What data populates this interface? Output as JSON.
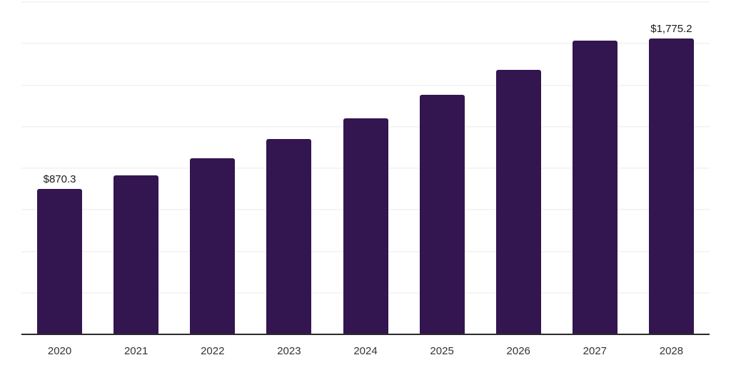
{
  "chart": {
    "background_color": "#ffffff",
    "bar_color": "#33154f",
    "gridline_color": "#f2f2f2",
    "axis_color": "#2b2b2b",
    "value_label_color": "#1a1a1a",
    "tick_label_color": "#333333"
  },
  "chart_data": {
    "type": "bar",
    "title": "",
    "xlabel": "",
    "ylabel": "",
    "categories": [
      "2020",
      "2021",
      "2022",
      "2023",
      "2024",
      "2025",
      "2026",
      "2027",
      "2028"
    ],
    "values": [
      870.3,
      954,
      1057,
      1172,
      1295,
      1437,
      1588,
      1766,
      1775.2
    ],
    "data_labels": [
      "$870.3",
      null,
      null,
      null,
      null,
      null,
      null,
      null,
      "$1,775.2"
    ],
    "ylim": [
      0,
      2000
    ],
    "grid_step": 250,
    "grid": true,
    "y_tick_labels_visible": false,
    "legend_position": "none"
  }
}
